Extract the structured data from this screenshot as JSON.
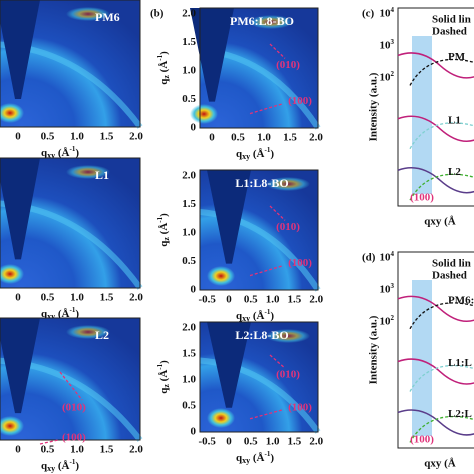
{
  "left_column": {
    "rows": [
      {
        "name": "PM6"
      },
      {
        "name": "L1"
      },
      {
        "name": "L2"
      }
    ],
    "x_ticks": [
      "0",
      "0.5",
      "1.0",
      "1.5",
      "2.0"
    ],
    "x_label": {
      "base": "q",
      "sub": "xy",
      "unit": " (Å",
      "sup": "-1",
      "close": ")"
    },
    "annotations": [
      "(010)",
      "(100)"
    ]
  },
  "panel_b": {
    "label": "(b)",
    "rows": [
      {
        "name": "PM6:L8-BO",
        "x_ticks": [
          "0",
          "0.5",
          "1.0",
          "1.5",
          "2.0"
        ]
      },
      {
        "name": "L1:L8-BO",
        "x_ticks": [
          "-0.5",
          "0",
          "0.5",
          "1.0",
          "1.5",
          "2.0"
        ]
      },
      {
        "name": "L2:L8-BO",
        "x_ticks": [
          "-0.5",
          "0",
          "0.5",
          "1.0",
          "1.5",
          "2.0"
        ]
      }
    ],
    "y_ticks": [
      "0",
      "0.5",
      "1.0",
      "1.5",
      "2.0"
    ],
    "x_label": {
      "base": "q",
      "sub": "xy",
      "unit": " (Å",
      "sup": "-1",
      "close": ")"
    },
    "y_label": {
      "base": "q",
      "sub": "z",
      "unit": " (Å",
      "sup": "-1",
      "close": ")"
    },
    "annotations": [
      "(010)",
      "(100)"
    ]
  },
  "panel_c": {
    "label": "(c)",
    "legend": [
      "Solid lin",
      "Dashed"
    ],
    "curves": [
      "PM",
      "L1",
      "L2"
    ],
    "peak": "(100)",
    "y_label": "Intensity (a.u.)",
    "y_ticks": [
      "10",
      "10",
      "10"
    ],
    "y_exps": [
      "4",
      "3",
      "2"
    ],
    "x_label": "qxy (Å"
  },
  "panel_d": {
    "label": "(d)",
    "legend": [
      "Solid lin",
      "Dashed"
    ],
    "curves": [
      "PM6:L",
      "L1:L",
      "L2:L"
    ],
    "peak": "(100)",
    "y_label": "Intensity (a.u.)",
    "y_ticks": [
      "10",
      "10",
      "10"
    ],
    "y_exps": [
      "4",
      "3",
      "2"
    ],
    "x_label": "qxy (Å"
  }
}
